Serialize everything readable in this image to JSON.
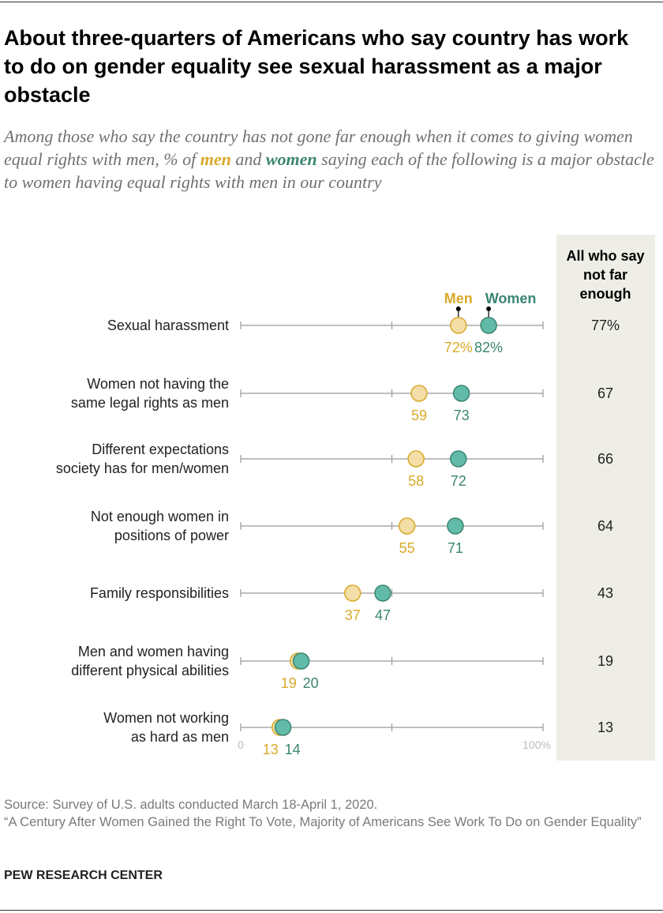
{
  "title": "About three-quarters of Americans who say country has work to do on gender equality see sexual harassment as a major obstacle",
  "subtitle": {
    "before": "Among those who say the country has not gone far enough when it comes to giving women equal rights with men, % of ",
    "men": "men",
    "middle": " and ",
    "women": "women",
    "after": " saying each of the following is a major obstacle to women having equal rights with men in our country"
  },
  "chart_data": {
    "type": "dot",
    "categories": [
      [
        "Sexual harassment"
      ],
      [
        "Women not having the",
        "same legal rights as men"
      ],
      [
        "Different expectations",
        "society has for men/women"
      ],
      [
        "Not enough women in",
        "positions of power"
      ],
      [
        "Family responsibilities"
      ],
      [
        "Men and women having",
        "different physical abilities"
      ],
      [
        "Women not working",
        "as hard as men"
      ]
    ],
    "series": [
      {
        "name": "Men",
        "values": [
          72,
          59,
          58,
          55,
          37,
          19,
          13
        ],
        "color": "#d9a92a",
        "fill": "#f2dea6"
      },
      {
        "name": "Women",
        "values": [
          82,
          73,
          72,
          71,
          47,
          20,
          14
        ],
        "color": "#3a8571",
        "fill": "#62bba8"
      }
    ],
    "all_header": [
      "All who say",
      "not far",
      "enough"
    ],
    "all_values": [
      "77%",
      "67",
      "66",
      "64",
      "43",
      "19",
      "13"
    ],
    "first_row_suffix": "%",
    "xlim": [
      0,
      100
    ],
    "xtick_labels": [
      "0",
      "100%"
    ]
  },
  "notes": {
    "source": "Source: Survey of U.S. adults conducted March 18-April 1, 2020.",
    "report": "“A Century After Women Gained the Right To Vote, Majority of Americans See Work To Do on Gender Equality”"
  },
  "brand": "PEW RESEARCH CENTER"
}
